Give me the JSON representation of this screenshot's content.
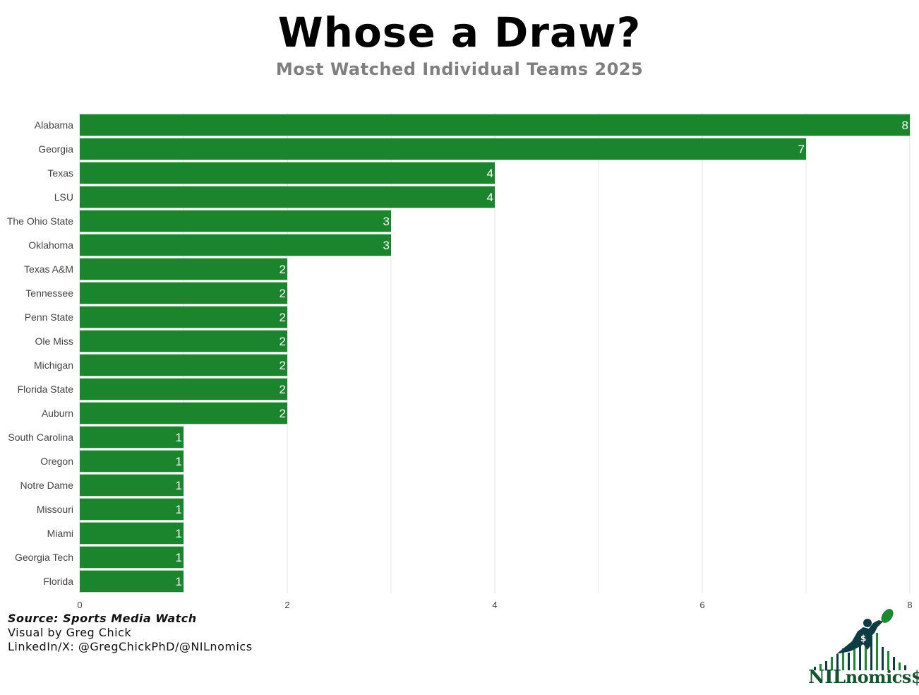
{
  "title": "Whose a Draw?",
  "subtitle": "Most Watched Individual Teams 2025",
  "caption": {
    "source": "Source: Sports Media Watch",
    "visual": "Visual by Greg Chick",
    "social": "LinkedIn/X: @GregChickPhD/@NILnomics"
  },
  "logo": {
    "text_nil": "NIL",
    "text_nomics": "nomics$",
    "colors": {
      "green": "#1b8a2e",
      "dark": "#0e3b44"
    }
  },
  "colors": {
    "bar": "#1b852d",
    "grid": "#e5e5e5",
    "bar_label": "#ffffff",
    "tick": "#444444"
  },
  "chart_data": {
    "type": "bar",
    "orientation": "horizontal",
    "categories": [
      "Alabama",
      "Georgia",
      "Texas",
      "LSU",
      "The Ohio State",
      "Oklahoma",
      "Texas A&M",
      "Tennessee",
      "Penn State",
      "Ole Miss",
      "Michigan",
      "Florida State",
      "Auburn",
      "South Carolina",
      "Oregon",
      "Notre Dame",
      "Missouri",
      "Miami",
      "Georgia Tech",
      "Florida"
    ],
    "values": [
      8,
      7,
      4,
      4,
      3,
      3,
      2,
      2,
      2,
      2,
      2,
      2,
      2,
      1,
      1,
      1,
      1,
      1,
      1,
      1
    ],
    "xlim": [
      0,
      8
    ],
    "xticks": [
      0,
      2,
      4,
      6,
      8
    ],
    "xlabel": "",
    "ylabel": "",
    "grid": true,
    "data_labels": true
  }
}
